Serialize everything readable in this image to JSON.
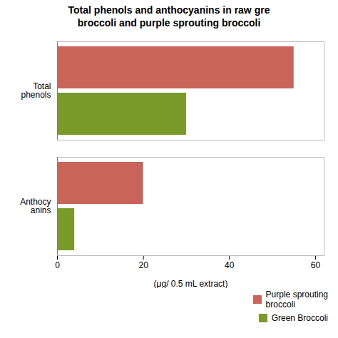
{
  "chart_data": {
    "type": "bar",
    "orientation": "horizontal",
    "title": "Total phenols and anthocyanins in raw gre\nbroccoli and purple sprouting broccoli",
    "categories": [
      "Total\nphenols",
      "Anthocy\nanins"
    ],
    "series": [
      {
        "name": "Purple sprouting\nbroccoli",
        "color": "#C8645A",
        "values": [
          55,
          20
        ]
      },
      {
        "name": "Green Broccoli",
        "color": "#7A9A2A",
        "values": [
          30,
          4
        ]
      }
    ],
    "xlabel": "(μg/ 0.5 mL extract)",
    "xlim": [
      0,
      62
    ],
    "xticks": [
      0,
      20,
      40,
      60
    ],
    "grid": false,
    "legend": "lower right"
  }
}
